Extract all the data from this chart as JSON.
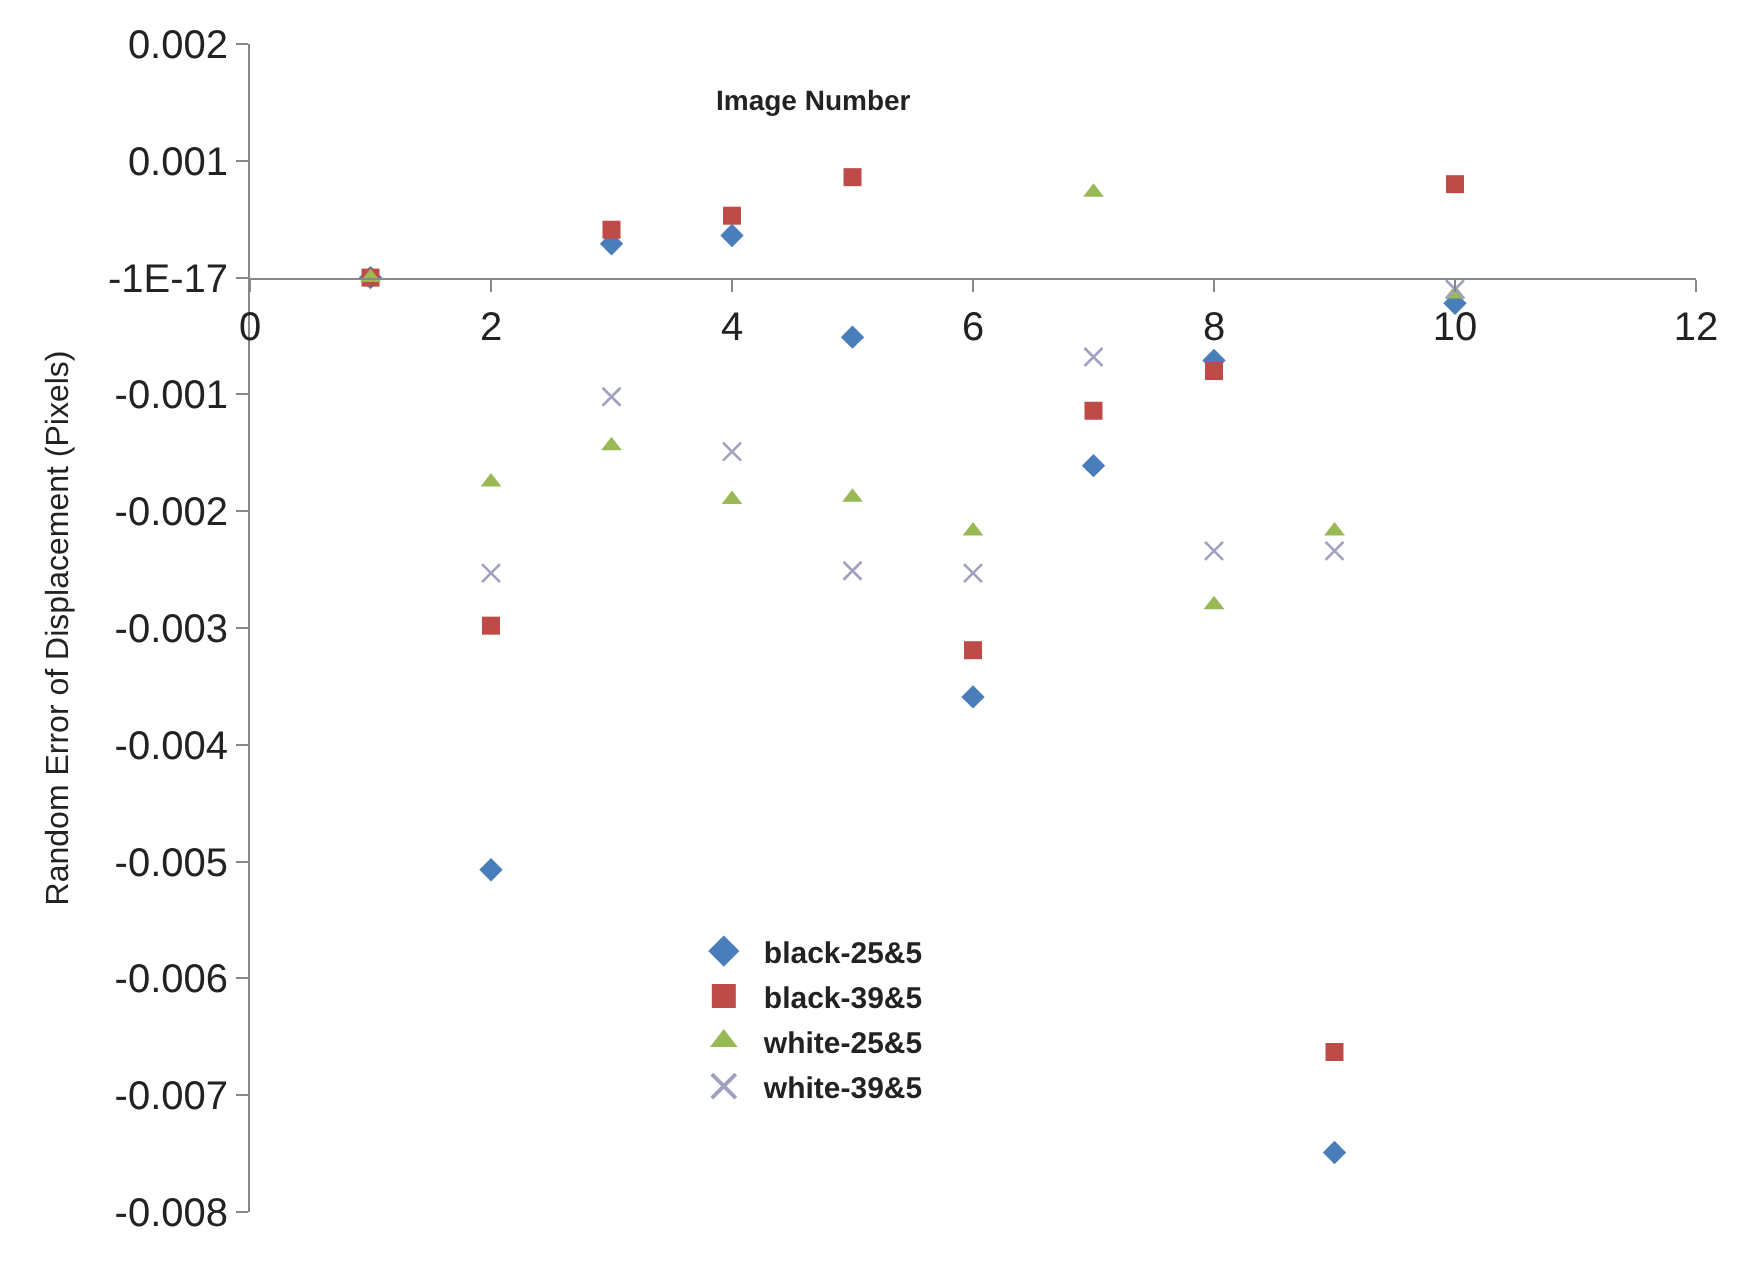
{
  "chart_data": {
    "type": "scatter",
    "xlabel": "Image Number",
    "ylabel": "Random Error of Displacement (Pixels)",
    "x": [
      1,
      2,
      3,
      4,
      5,
      6,
      7,
      8,
      9,
      10
    ],
    "series": [
      {
        "name": "black-25&5",
        "color": "#4a7ebb",
        "marker": "diamond",
        "values": [
          0,
          -0.00507,
          0.00029,
          0.00036,
          -0.00051,
          -0.00359,
          -0.00161,
          -0.00071,
          -0.00749,
          -0.00022
        ]
      },
      {
        "name": "black-39&5",
        "color": "#be4b48",
        "marker": "square",
        "values": [
          0,
          -0.00298,
          0.00041,
          0.00053,
          0.00086,
          -0.00319,
          -0.00114,
          -0.0008,
          -0.00663,
          0.0008
        ]
      },
      {
        "name": "white-25&5",
        "color": "#98b954",
        "marker": "triangle",
        "values": [
          0,
          -0.00175,
          -0.00144,
          -0.0019,
          -0.00188,
          -0.00217,
          0.00073,
          -0.0028,
          -0.00217,
          -0.00014
        ]
      },
      {
        "name": "white-39&5",
        "color": "#a0a0c0",
        "marker": "cross",
        "values": [
          null,
          -0.00253,
          -0.00102,
          -0.00149,
          -0.00251,
          -0.00253,
          -0.00068,
          -0.00234,
          -0.00234,
          -0.0001
        ]
      }
    ],
    "xlim": [
      0,
      12
    ],
    "xticks": [
      0,
      2,
      4,
      6,
      8,
      10,
      12
    ],
    "ylim": [
      -0.008,
      0.002
    ],
    "yticks": [
      -0.008,
      -0.007,
      -0.006,
      -0.005,
      -0.004,
      -0.003,
      -0.002,
      -0.001,
      {
        "value": 0,
        "label": "-1E-17"
      },
      0.001,
      0.002
    ],
    "legend": "bottom"
  }
}
